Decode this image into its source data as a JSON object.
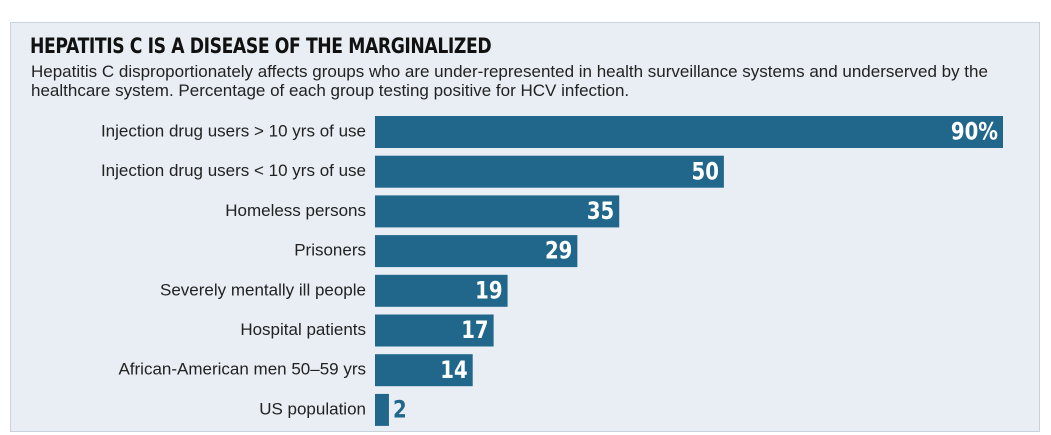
{
  "chart_data": {
    "type": "bar",
    "orientation": "horizontal",
    "title": "HEPATITIS C IS A DISEASE OF THE MARGINALIZED",
    "subtitle": "Hepatitis C disproportionately affects groups who are under-represented in health surveillance systems and underserved by the healthcare system. Percentage of each group testing positive for HCV infection.",
    "categories": [
      "Injection drug users > 10 yrs of use",
      "Injection drug users < 10 yrs of use",
      "Homeless persons",
      "Prisoners",
      "Severely mentally ill people",
      "Hospital patients",
      "African-American men 50–59 yrs",
      "US population"
    ],
    "values": [
      90,
      50,
      35,
      29,
      19,
      17,
      14,
      2
    ],
    "value_labels": [
      "90%",
      "50",
      "35",
      "29",
      "19",
      "17",
      "14",
      "2"
    ],
    "color": "#21678c"
  }
}
